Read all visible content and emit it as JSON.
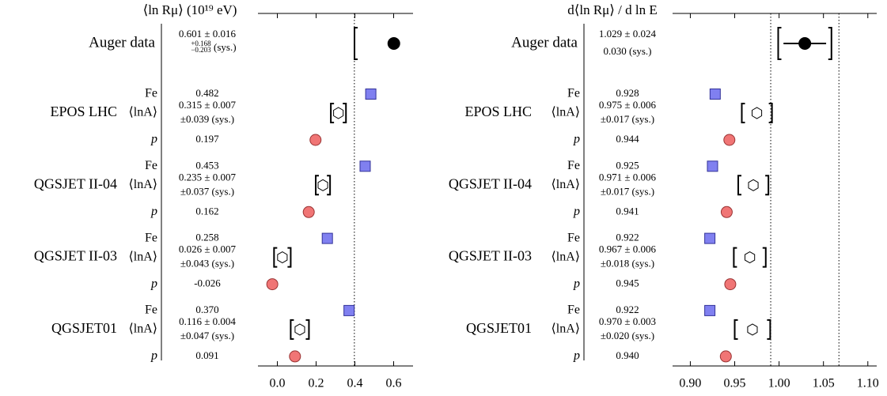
{
  "chart_data": [
    {
      "type": "forest",
      "title": "⟨ln Rμ⟩ (10¹⁹ eV)",
      "xlim": [
        -0.1,
        0.7
      ],
      "xticks": [
        {
          "value": 0,
          "label": "0.0"
        },
        0.2,
        0.4,
        0.6
      ],
      "data": {
        "name": "Auger data",
        "value": 0.601,
        "stat": 0.016,
        "sys_up": 0.168,
        "sys_down": 0.203,
        "color": "#000000",
        "value_labels": [
          "0.601 ± 0.016",
          "+0.168",
          "−0.203",
          "(sys.)"
        ]
      },
      "models": [
        {
          "name": "EPOS LHC",
          "rows": [
            {
              "label": "Fe",
              "value": 0.482,
              "value_label": "0.482",
              "color": "#8080f0"
            },
            {
              "label": "⟨lnA⟩",
              "value": 0.315,
              "stat": 0.007,
              "sys": 0.039,
              "value_labels": [
                "0.315 ± 0.007",
                "±0.039 (sys.)"
              ]
            },
            {
              "label": "p",
              "value": 0.197,
              "value_label": "0.197",
              "color": "#f07575"
            }
          ]
        },
        {
          "name": "QGSJET II-04",
          "rows": [
            {
              "label": "Fe",
              "value": 0.453,
              "value_label": "0.453",
              "color": "#8080f0"
            },
            {
              "label": "⟨lnA⟩",
              "value": 0.235,
              "stat": 0.007,
              "sys": 0.037,
              "value_labels": [
                "0.235 ± 0.007",
                "±0.037 (sys.)"
              ]
            },
            {
              "label": "p",
              "value": 0.162,
              "value_label": "0.162",
              "color": "#f07575"
            }
          ]
        },
        {
          "name": "QGSJET II-03",
          "rows": [
            {
              "label": "Fe",
              "value": 0.258,
              "value_label": "0.258",
              "color": "#8080f0"
            },
            {
              "label": "⟨lnA⟩",
              "value": 0.026,
              "stat": 0.007,
              "sys": 0.043,
              "value_labels": [
                "0.026 ± 0.007",
                "±0.043 (sys.)"
              ]
            },
            {
              "label": "p",
              "value": -0.026,
              "value_label": "-0.026",
              "color": "#f07575"
            }
          ]
        },
        {
          "name": "QGSJET01",
          "rows": [
            {
              "label": "Fe",
              "value": 0.37,
              "value_label": "0.370",
              "color": "#8080f0"
            },
            {
              "label": "⟨lnA⟩",
              "value": 0.116,
              "stat": 0.004,
              "sys": 0.047,
              "value_labels": [
                "0.116 ± 0.004",
                "±0.047 (sys.)"
              ]
            },
            {
              "label": "p",
              "value": 0.091,
              "value_label": "0.091",
              "color": "#f07575"
            }
          ]
        }
      ]
    },
    {
      "type": "forest",
      "title": "d⟨ln Rμ⟩ / d ln E",
      "xlim": [
        0.88,
        1.11
      ],
      "xticks": [
        {
          "value": 0.9,
          "label": "0.90"
        },
        0.95,
        {
          "value": 1,
          "label": "1.00"
        },
        1.05,
        {
          "value": 1.1,
          "label": "1.10"
        }
      ],
      "data": {
        "name": "Auger data",
        "value": 1.029,
        "stat": 0.024,
        "sys_up": 0.03,
        "sys_down": 0.03,
        "color": "#000000",
        "value_labels": [
          "1.029 ± 0.024",
          "0.030 (sys.)"
        ]
      },
      "models": [
        {
          "name": "EPOS LHC",
          "rows": [
            {
              "label": "Fe",
              "value": 0.928,
              "value_label": "0.928",
              "color": "#8080f0"
            },
            {
              "label": "⟨lnA⟩",
              "value": 0.975,
              "stat": 0.006,
              "sys": 0.017,
              "value_labels": [
                "0.975 ± 0.006",
                "±0.017 (sys.)"
              ]
            },
            {
              "label": "p",
              "value": 0.944,
              "value_label": "0.944",
              "color": "#f07575"
            }
          ]
        },
        {
          "name": "QGSJET II-04",
          "rows": [
            {
              "label": "Fe",
              "value": 0.925,
              "value_label": "0.925",
              "color": "#8080f0"
            },
            {
              "label": "⟨lnA⟩",
              "value": 0.971,
              "stat": 0.006,
              "sys": 0.017,
              "value_labels": [
                "0.971 ± 0.006",
                "±0.017 (sys.)"
              ]
            },
            {
              "label": "p",
              "value": 0.941,
              "value_label": "0.941",
              "color": "#f07575"
            }
          ]
        },
        {
          "name": "QGSJET II-03",
          "rows": [
            {
              "label": "Fe",
              "value": 0.922,
              "value_label": "0.922",
              "color": "#8080f0"
            },
            {
              "label": "⟨lnA⟩",
              "value": 0.967,
              "stat": 0.006,
              "sys": 0.018,
              "value_labels": [
                "0.967 ± 0.006",
                "±0.018 (sys.)"
              ]
            },
            {
              "label": "p",
              "value": 0.945,
              "value_label": "0.945",
              "color": "#f07575"
            }
          ]
        },
        {
          "name": "QGSJET01",
          "rows": [
            {
              "label": "Fe",
              "value": 0.922,
              "value_label": "0.922",
              "color": "#8080f0"
            },
            {
              "label": "⟨lnA⟩",
              "value": 0.97,
              "stat": 0.003,
              "sys": 0.02,
              "value_labels": [
                "0.970 ± 0.003",
                "±0.020 (sys.)"
              ]
            },
            {
              "label": "p",
              "value": 0.94,
              "value_label": "0.940",
              "color": "#f07575"
            }
          ]
        }
      ]
    }
  ]
}
